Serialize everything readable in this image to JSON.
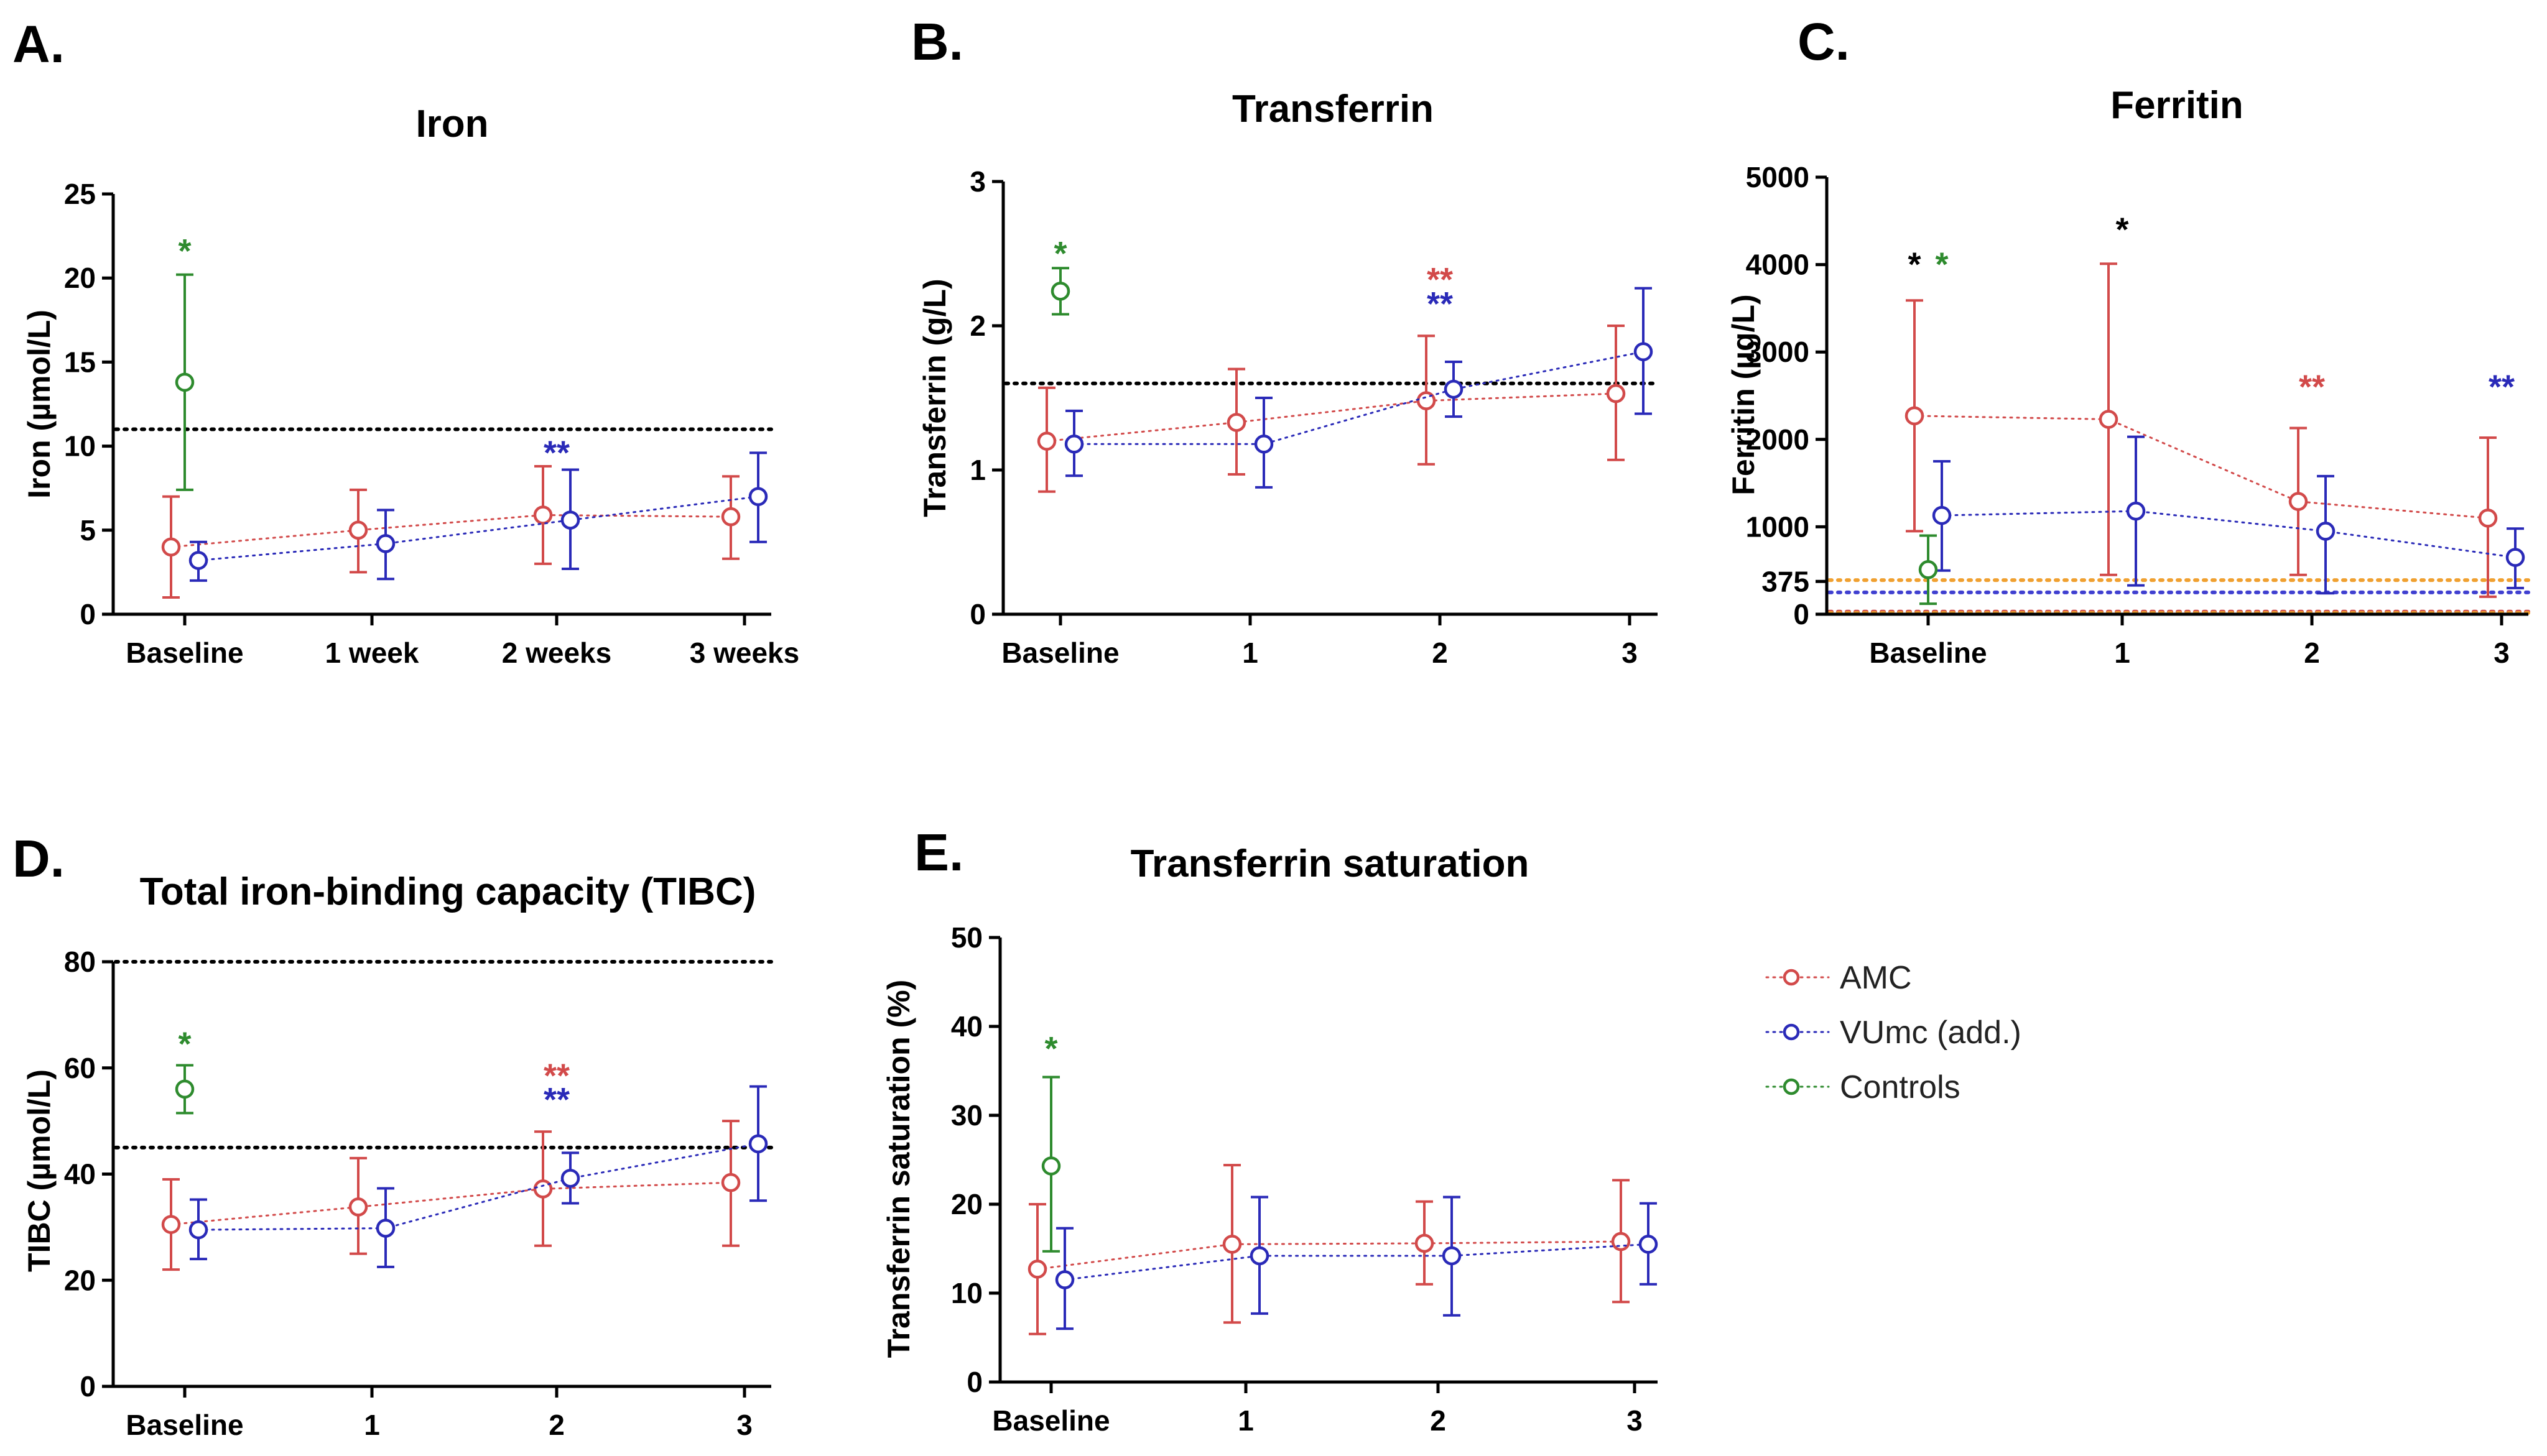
{
  "colors": {
    "amc": "#d24a4a",
    "vumc": "#2a2ab8",
    "controls": "#2e8b2e",
    "axis": "#000000",
    "ref_black": "#000000",
    "ref_orange": "#f0a030",
    "ref_blue": "#4040d0",
    "ref_red": "#d05050"
  },
  "legend": {
    "items": [
      {
        "key": "amc",
        "label": "AMC"
      },
      {
        "key": "vumc",
        "label": "VUmc (add.)"
      },
      {
        "key": "controls",
        "label": "Controls"
      }
    ]
  },
  "chart_data": [
    {
      "id": "A",
      "letter": "A.",
      "type": "scatter",
      "title": "Iron",
      "ylabel": "Iron (µmol/L)",
      "xlabel": "",
      "ylim": [
        0,
        25
      ],
      "yticks": [
        0,
        5,
        10,
        15,
        20,
        25
      ],
      "categories": [
        "Baseline",
        "1 week",
        "2 weeks",
        "3 weeks"
      ],
      "reference_lines": [
        {
          "y": 11,
          "color": "ref_black"
        }
      ],
      "series": [
        {
          "name": "AMC",
          "key": "amc",
          "x": [
            0,
            1,
            2,
            3
          ],
          "mean": [
            4.0,
            5.0,
            5.9,
            5.8
          ],
          "lower": [
            1.0,
            2.5,
            3.0,
            3.3
          ],
          "upper": [
            7.0,
            7.4,
            8.8,
            8.2
          ]
        },
        {
          "name": "VUmc (add.)",
          "key": "vumc",
          "x": [
            0,
            1,
            2,
            3
          ],
          "mean": [
            3.2,
            4.2,
            5.6,
            7.0
          ],
          "lower": [
            2.0,
            2.1,
            2.7,
            4.3
          ],
          "upper": [
            4.3,
            6.2,
            8.6,
            9.6
          ]
        },
        {
          "name": "Controls",
          "key": "controls",
          "x": [
            0
          ],
          "mean": [
            13.8
          ],
          "lower": [
            7.4
          ],
          "upper": [
            20.2
          ]
        }
      ],
      "annotations": [
        {
          "text": "*",
          "color": "controls",
          "x": 0,
          "y": 21.6,
          "dx": 0
        },
        {
          "text": "**",
          "color": "vumc",
          "x": 2,
          "y": 9.6,
          "dx": 0
        }
      ]
    },
    {
      "id": "B",
      "letter": "B.",
      "type": "scatter",
      "title": "Transferrin",
      "ylabel": "Transferrin (g/L)",
      "xlabel": "",
      "ylim": [
        0,
        3
      ],
      "yticks": [
        0,
        1,
        2,
        3
      ],
      "categories": [
        "Baseline",
        "1",
        "2",
        "3"
      ],
      "reference_lines": [
        {
          "y": 1.6,
          "color": "ref_black"
        }
      ],
      "series": [
        {
          "name": "AMC",
          "key": "amc",
          "x": [
            0,
            1,
            2,
            3
          ],
          "mean": [
            1.2,
            1.33,
            1.48,
            1.53
          ],
          "lower": [
            0.85,
            0.97,
            1.04,
            1.07
          ],
          "upper": [
            1.57,
            1.7,
            1.93,
            2.0
          ]
        },
        {
          "name": "VUmc (add.)",
          "key": "vumc",
          "x": [
            0,
            1,
            2,
            3
          ],
          "mean": [
            1.18,
            1.18,
            1.56,
            1.82
          ],
          "lower": [
            0.96,
            0.88,
            1.37,
            1.39
          ],
          "upper": [
            1.41,
            1.5,
            1.75,
            2.26
          ]
        },
        {
          "name": "Controls",
          "key": "controls",
          "x": [
            0
          ],
          "mean": [
            2.24
          ],
          "lower": [
            2.08
          ],
          "upper": [
            2.4
          ]
        }
      ],
      "annotations": [
        {
          "text": "*",
          "color": "controls",
          "x": 0,
          "y": 2.5,
          "dx": 0
        },
        {
          "text": "**",
          "color": "amc",
          "x": 2,
          "y": 2.32,
          "dx": 0
        },
        {
          "text": "**",
          "color": "vumc",
          "x": 2,
          "y": 2.15,
          "dx": 0
        }
      ]
    },
    {
      "id": "C",
      "letter": "C.",
      "type": "scatter",
      "title": "Ferritin",
      "ylabel": "Ferritin (µg/L)",
      "xlabel": "",
      "ylim": [
        0,
        5000
      ],
      "yticks": [
        0,
        375,
        1000,
        2000,
        3000,
        4000,
        5000
      ],
      "categories": [
        "Baseline",
        "1",
        "2",
        "3"
      ],
      "reference_lines": [
        {
          "y": 390,
          "color": "ref_orange"
        },
        {
          "y": 250,
          "color": "ref_blue"
        },
        {
          "y": 30,
          "color": "ref_red"
        },
        {
          "y": 15,
          "color": "ref_orange"
        }
      ],
      "series": [
        {
          "name": "AMC",
          "key": "amc",
          "x": [
            0,
            1,
            2,
            3
          ],
          "mean": [
            2270,
            2230,
            1290,
            1100
          ],
          "lower": [
            950,
            450,
            450,
            200
          ],
          "upper": [
            3590,
            4010,
            2130,
            2020
          ]
        },
        {
          "name": "VUmc (add.)",
          "key": "vumc",
          "x": [
            0,
            1,
            2,
            3
          ],
          "mean": [
            1130,
            1180,
            950,
            650
          ],
          "lower": [
            500,
            330,
            240,
            300
          ],
          "upper": [
            1750,
            2030,
            1580,
            980
          ]
        },
        {
          "name": "Controls",
          "key": "controls",
          "x": [
            0
          ],
          "mean": [
            510
          ],
          "lower": [
            120
          ],
          "upper": [
            900
          ]
        }
      ],
      "annotations": [
        {
          "text": "*",
          "color": "ref_black",
          "x": 0,
          "y": 4000,
          "dx": -22
        },
        {
          "text": "*",
          "color": "controls",
          "x": 0,
          "y": 4000,
          "dx": 22
        },
        {
          "text": "*",
          "color": "ref_black",
          "x": 1,
          "y": 4400,
          "dx": 0
        },
        {
          "text": "**",
          "color": "amc",
          "x": 2,
          "y": 2600,
          "dx": 0
        },
        {
          "text": "**",
          "color": "vumc",
          "x": 3,
          "y": 2600,
          "dx": 0
        }
      ]
    },
    {
      "id": "D",
      "letter": "D.",
      "type": "scatter",
      "title": "Total iron-binding capacity (TIBC)",
      "ylabel": "TIBC (µmol/L)",
      "xlabel": "",
      "ylim": [
        0,
        80
      ],
      "yticks": [
        0,
        20,
        40,
        60,
        80
      ],
      "categories": [
        "Baseline",
        "1",
        "2",
        "3"
      ],
      "reference_lines": [
        {
          "y": 80,
          "color": "ref_black"
        },
        {
          "y": 45,
          "color": "ref_black"
        }
      ],
      "series": [
        {
          "name": "AMC",
          "key": "amc",
          "x": [
            0,
            1,
            2,
            3
          ],
          "mean": [
            30.5,
            33.8,
            37.2,
            38.4
          ],
          "lower": [
            22,
            25,
            26.5,
            26.5
          ],
          "upper": [
            39,
            43,
            48,
            50
          ]
        },
        {
          "name": "VUmc (add.)",
          "key": "vumc",
          "x": [
            0,
            1,
            2,
            3
          ],
          "mean": [
            29.5,
            29.8,
            39.2,
            45.7
          ],
          "lower": [
            24,
            22.5,
            34.5,
            35
          ],
          "upper": [
            35.2,
            37.3,
            44,
            56.5
          ]
        },
        {
          "name": "Controls",
          "key": "controls",
          "x": [
            0
          ],
          "mean": [
            56
          ],
          "lower": [
            51.5
          ],
          "upper": [
            60.5
          ]
        }
      ],
      "annotations": [
        {
          "text": "*",
          "color": "controls",
          "x": 0,
          "y": 64.5,
          "dx": 0
        },
        {
          "text": "**",
          "color": "amc",
          "x": 2,
          "y": 58.5,
          "dx": 0
        },
        {
          "text": "**",
          "color": "vumc",
          "x": 2,
          "y": 54,
          "dx": 0
        }
      ]
    },
    {
      "id": "E",
      "letter": "E.",
      "type": "scatter",
      "title": "Transferrin saturation",
      "ylabel": "Transferrin saturation (%)",
      "xlabel": "",
      "ylim": [
        0,
        50
      ],
      "yticks": [
        0,
        10,
        20,
        30,
        40,
        50
      ],
      "categories": [
        "Baseline",
        "1",
        "2",
        "3"
      ],
      "reference_lines": [],
      "series": [
        {
          "name": "AMC",
          "key": "amc",
          "x": [
            0,
            1,
            2,
            3
          ],
          "mean": [
            12.7,
            15.5,
            15.6,
            15.8
          ],
          "lower": [
            5.4,
            6.7,
            11,
            9
          ],
          "upper": [
            20,
            24.4,
            20.3,
            22.7
          ]
        },
        {
          "name": "VUmc (add.)",
          "key": "vumc",
          "x": [
            0,
            1,
            2,
            3
          ],
          "mean": [
            11.5,
            14.2,
            14.2,
            15.5
          ],
          "lower": [
            6,
            7.7,
            7.5,
            11
          ],
          "upper": [
            17.3,
            20.8,
            20.8,
            20.1
          ]
        },
        {
          "name": "Controls",
          "key": "controls",
          "x": [
            0
          ],
          "mean": [
            24.3
          ],
          "lower": [
            14.7
          ],
          "upper": [
            34.3
          ]
        }
      ],
      "annotations": [
        {
          "text": "*",
          "color": "controls",
          "x": 0,
          "y": 37.5,
          "dx": 0
        }
      ]
    }
  ]
}
